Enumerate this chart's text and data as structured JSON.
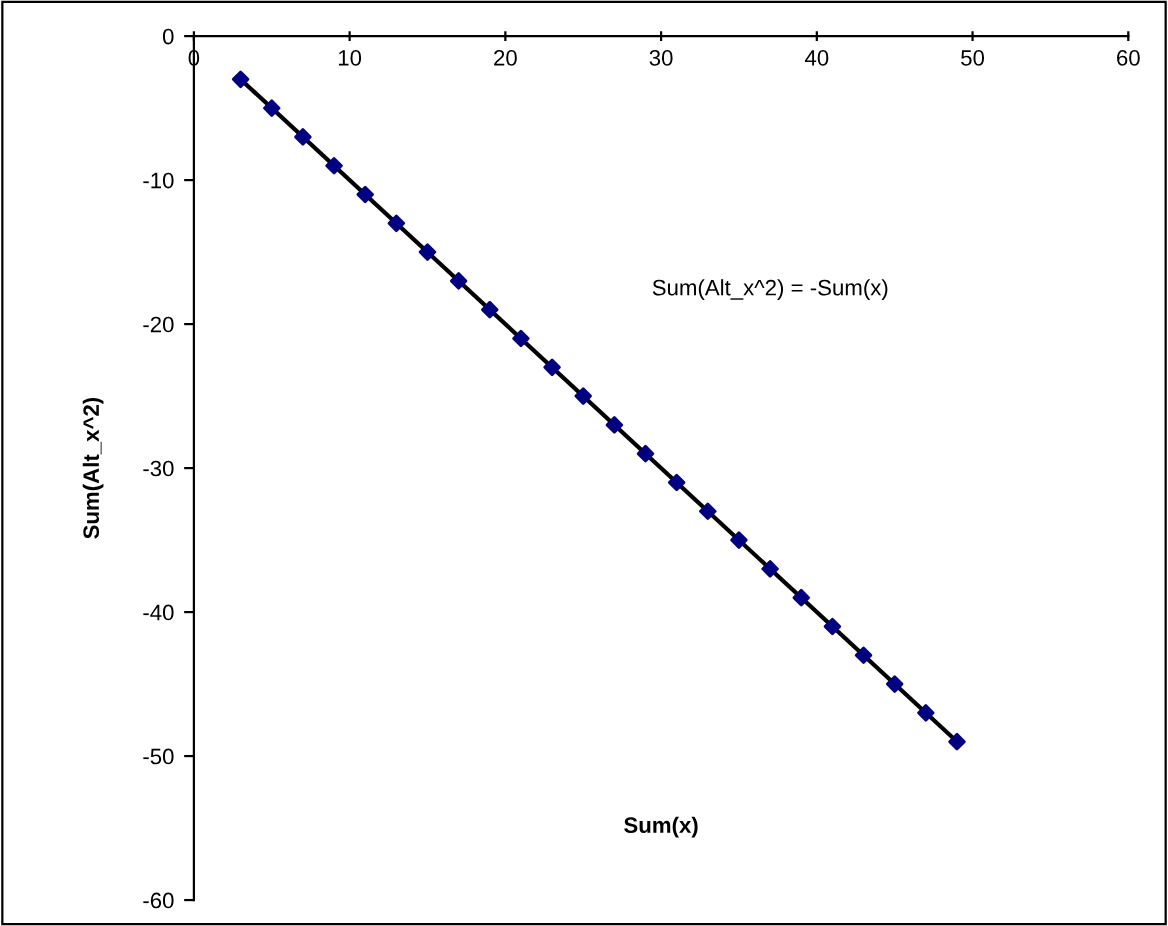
{
  "chart_data": {
    "type": "scatter",
    "xlabel": "Sum(x)",
    "ylabel": "Sum(Alt_x^2)",
    "annotations": [
      "Sum(Alt_x^2) = -Sum(x)"
    ],
    "x": [
      3,
      5,
      7,
      9,
      11,
      13,
      15,
      17,
      19,
      21,
      23,
      25,
      27,
      29,
      31,
      33,
      35,
      37,
      39,
      41,
      43,
      45,
      47,
      49
    ],
    "series": [
      {
        "color": "#000080",
        "marker": "diamond",
        "values": [
          -3,
          -5,
          -7,
          -9,
          -11,
          -13,
          -15,
          -17,
          -19,
          -21,
          -23,
          -25,
          -27,
          -29,
          -31,
          -33,
          -35,
          -37,
          -39,
          -41,
          -43,
          -45,
          -47,
          -49
        ]
      },
      {
        "type": "line",
        "color": "#000000",
        "x": [
          3,
          49
        ],
        "values": [
          -3,
          -49
        ]
      }
    ],
    "xlim": [
      0,
      60
    ],
    "xticks": [
      0,
      10,
      20,
      30,
      40,
      50,
      60
    ],
    "ylim": [
      -60,
      0
    ],
    "yticks": [
      -60,
      -50,
      -40,
      -30,
      -20,
      -10,
      0
    ],
    "grid": false,
    "legend": false
  }
}
